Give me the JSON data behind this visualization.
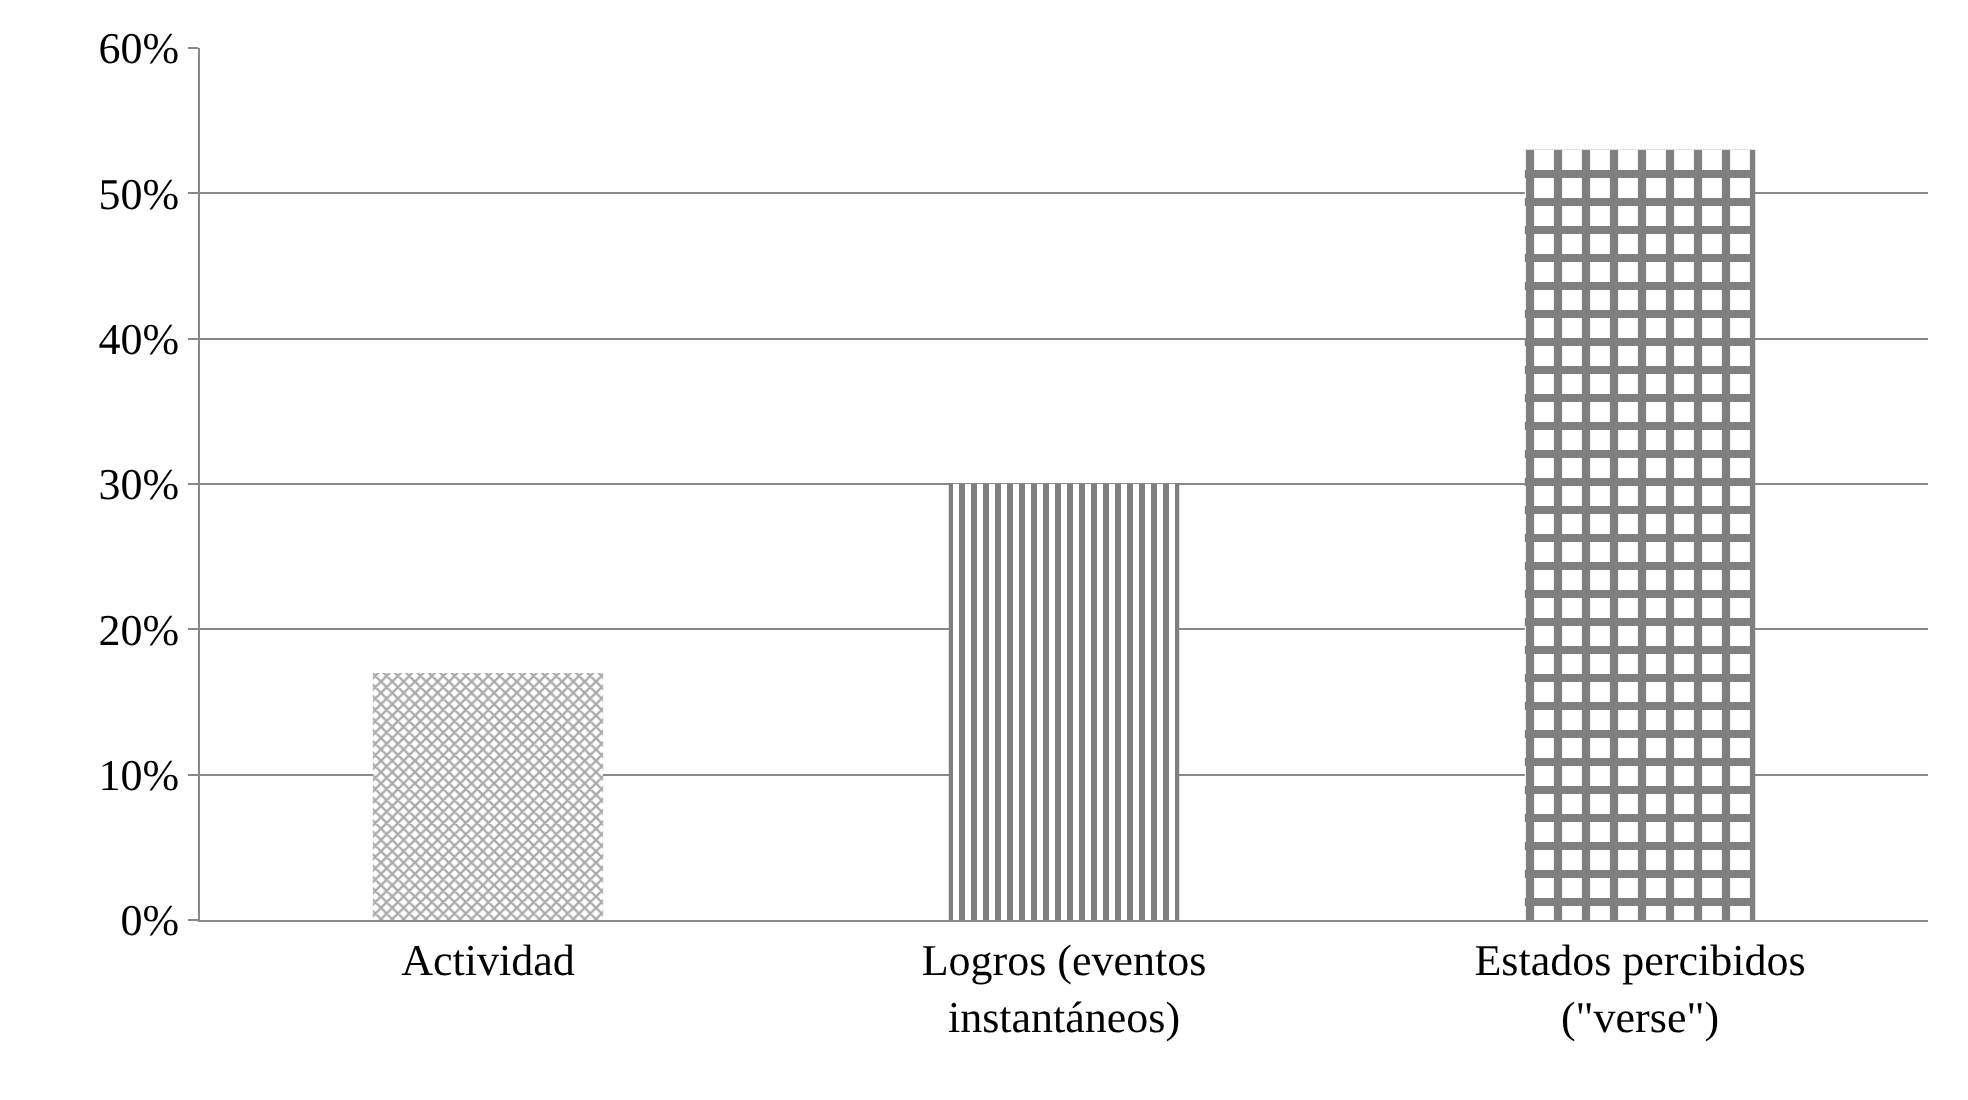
{
  "chart_data": {
    "type": "bar",
    "categories": [
      "Actividad",
      "Logros (eventos instantáneos)",
      "Estados percibidos (\"verse\")"
    ],
    "values": [
      0.17,
      0.3,
      0.53
    ],
    "colors": [
      "#555555",
      "#000000",
      "#000000"
    ],
    "ylim": [
      0,
      0.6
    ],
    "yticks": [
      {
        "value": 0,
        "label": "0%"
      },
      {
        "value": 0.1,
        "label": "10%"
      },
      {
        "value": 0.2,
        "label": "20%"
      },
      {
        "value": 0.3,
        "label": "30%"
      },
      {
        "value": 0.4,
        "label": "40%"
      },
      {
        "value": 0.5,
        "label": "50%"
      },
      {
        "value": 0.6,
        "label": "60%"
      }
    ],
    "grid": "y",
    "legend": false
  }
}
